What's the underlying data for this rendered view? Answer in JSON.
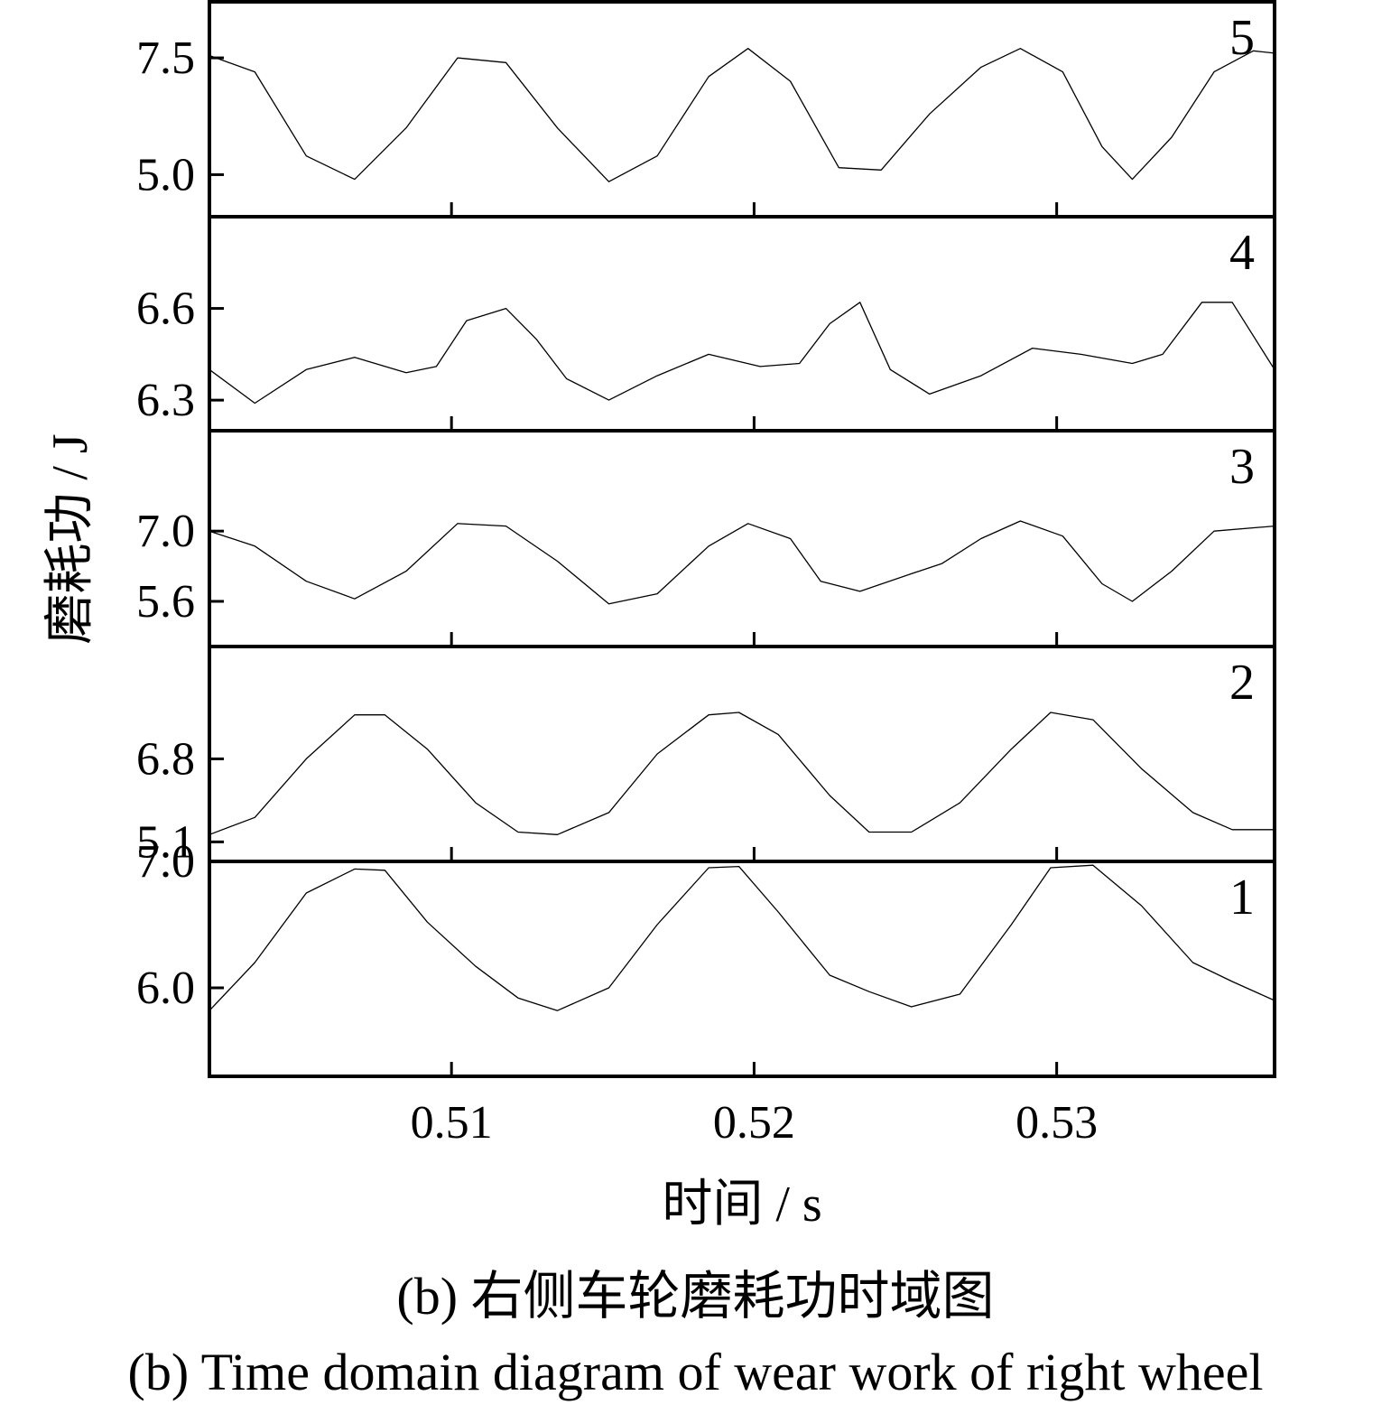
{
  "chart_data": {
    "type": "line",
    "layout": "stacked-panels",
    "xlabel": "时间 / s",
    "ylabel": "磨耗功 / J",
    "xlim": [
      0.502,
      0.5372
    ],
    "x_ticks": [
      0.51,
      0.52,
      0.53
    ],
    "x_tick_labels": [
      "0.51",
      "0.52",
      "0.53"
    ],
    "grid": false,
    "panels": [
      {
        "label": "5",
        "ylim": [
          4.1,
          8.7
        ],
        "y_ticks": [
          5.0,
          7.5
        ],
        "y_tick_labels": [
          "5.0",
          "7.5"
        ],
        "x": [
          0.502,
          0.5035,
          0.5052,
          0.5068,
          0.5085,
          0.5102,
          0.5118,
          0.5135,
          0.5152,
          0.5168,
          0.5185,
          0.5198,
          0.5212,
          0.5228,
          0.5242,
          0.5258,
          0.5275,
          0.5288,
          0.5302,
          0.5315,
          0.5325,
          0.5338,
          0.5352,
          0.5365,
          0.5372
        ],
        "values": [
          7.55,
          7.2,
          5.4,
          4.9,
          6.0,
          7.5,
          7.4,
          6.0,
          4.85,
          5.4,
          7.1,
          7.7,
          7.0,
          5.15,
          5.1,
          6.3,
          7.3,
          7.7,
          7.2,
          5.6,
          4.9,
          5.8,
          7.2,
          7.65,
          7.6
        ]
      },
      {
        "label": "4",
        "ylim": [
          6.2,
          6.9
        ],
        "y_ticks": [
          6.3,
          6.6
        ],
        "y_tick_labels": [
          "6.3",
          "6.6"
        ],
        "x": [
          0.502,
          0.5035,
          0.5052,
          0.5068,
          0.5085,
          0.5095,
          0.5105,
          0.5118,
          0.5128,
          0.5138,
          0.5152,
          0.5168,
          0.5185,
          0.5202,
          0.5215,
          0.5225,
          0.5235,
          0.5245,
          0.5258,
          0.5275,
          0.5292,
          0.5308,
          0.5325,
          0.5335,
          0.5348,
          0.5358,
          0.5372
        ],
        "values": [
          6.4,
          6.29,
          6.4,
          6.44,
          6.39,
          6.41,
          6.56,
          6.6,
          6.5,
          6.37,
          6.3,
          6.38,
          6.45,
          6.41,
          6.42,
          6.55,
          6.62,
          6.4,
          6.32,
          6.38,
          6.47,
          6.45,
          6.42,
          6.45,
          6.62,
          6.62,
          6.4
        ]
      },
      {
        "label": "3",
        "ylim": [
          4.7,
          9.0
        ],
        "y_ticks": [
          5.6,
          7.0
        ],
        "y_tick_labels": [
          "5.6",
          "7.0"
        ],
        "x": [
          0.502,
          0.5035,
          0.5052,
          0.5068,
          0.5085,
          0.5102,
          0.5118,
          0.5135,
          0.5152,
          0.5168,
          0.5185,
          0.5198,
          0.5212,
          0.5222,
          0.5235,
          0.5252,
          0.5262,
          0.5275,
          0.5288,
          0.5302,
          0.5315,
          0.5325,
          0.5338,
          0.5352,
          0.5372
        ],
        "values": [
          7.0,
          6.7,
          6.0,
          5.65,
          6.2,
          7.15,
          7.1,
          6.4,
          5.55,
          5.75,
          6.7,
          7.15,
          6.85,
          6.0,
          5.8,
          6.15,
          6.35,
          6.85,
          7.2,
          6.9,
          5.95,
          5.6,
          6.2,
          7.0,
          7.1
        ]
      },
      {
        "label": "2",
        "ylim": [
          4.7,
          9.1
        ],
        "y_ticks": [
          5.1,
          6.8
        ],
        "y_tick_labels": [
          "5.1",
          "6.8"
        ],
        "x": [
          0.502,
          0.5035,
          0.5052,
          0.5068,
          0.5078,
          0.5092,
          0.5108,
          0.5122,
          0.5135,
          0.5152,
          0.5168,
          0.5185,
          0.5195,
          0.5208,
          0.5225,
          0.5238,
          0.5252,
          0.5268,
          0.5285,
          0.5298,
          0.5312,
          0.5328,
          0.5345,
          0.5358,
          0.5372
        ],
        "values": [
          5.25,
          5.6,
          6.8,
          7.7,
          7.7,
          7.0,
          5.9,
          5.3,
          5.25,
          5.7,
          6.9,
          7.7,
          7.75,
          7.3,
          6.05,
          5.3,
          5.3,
          5.9,
          7.0,
          7.75,
          7.6,
          6.6,
          5.7,
          5.35,
          5.35
        ]
      },
      {
        "label": "1",
        "ylim": [
          5.3,
          7.0
        ],
        "y_ticks": [
          6.0,
          7.0
        ],
        "y_tick_labels": [
          "6.0",
          "7.0"
        ],
        "x": [
          0.502,
          0.5035,
          0.5052,
          0.5068,
          0.5078,
          0.5092,
          0.5108,
          0.5122,
          0.5135,
          0.5152,
          0.5168,
          0.5185,
          0.5195,
          0.5208,
          0.5225,
          0.5238,
          0.5252,
          0.5268,
          0.5285,
          0.5298,
          0.5312,
          0.5328,
          0.5345,
          0.5358,
          0.5372
        ],
        "values": [
          5.82,
          6.2,
          6.75,
          6.94,
          6.93,
          6.52,
          6.17,
          5.92,
          5.82,
          6.0,
          6.5,
          6.95,
          6.96,
          6.6,
          6.1,
          5.97,
          5.85,
          5.95,
          6.5,
          6.95,
          6.97,
          6.65,
          6.2,
          6.05,
          5.9
        ]
      }
    ]
  },
  "caption": {
    "chinese": "(b) 右侧车轮磨耗功时域图",
    "english": "(b) Time domain diagram of wear work of right wheel"
  }
}
